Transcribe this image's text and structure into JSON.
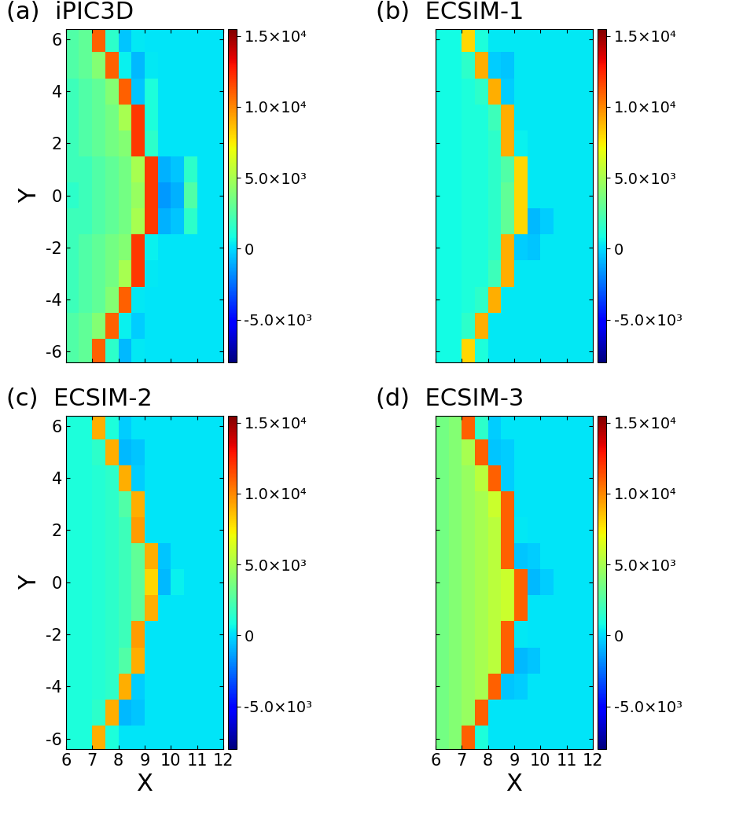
{
  "chart_data": [
    {
      "type": "heatmap",
      "title": "(a)  iPIC3D",
      "ylabel": "Y",
      "tick_labels": "y",
      "xlim": [
        6,
        12
      ],
      "ylim": [
        -6.4,
        6.4
      ],
      "xticks": [
        6,
        7,
        8,
        9,
        10,
        11,
        12
      ],
      "yticks": [
        -6,
        -4,
        -2,
        0,
        2,
        4,
        6
      ],
      "x": [
        6.25,
        6.75,
        7.25,
        7.75,
        8.25,
        8.75,
        9.25,
        9.75,
        10.25,
        10.75,
        11.25,
        11.75
      ],
      "y": [
        -6,
        -5,
        -4,
        -3,
        -2,
        -1,
        0,
        1,
        2,
        3,
        4,
        5,
        6
      ],
      "values": [
        [
          2500,
          3000,
          11000,
          1500,
          -800,
          300,
          200,
          200,
          200,
          200,
          200,
          200
        ],
        [
          2500,
          3000,
          4000,
          11000,
          500,
          -300,
          200,
          200,
          200,
          200,
          200,
          200
        ],
        [
          2000,
          2500,
          3000,
          4000,
          11000,
          300,
          200,
          200,
          200,
          200,
          200,
          200
        ],
        [
          2000,
          2500,
          3000,
          3500,
          5000,
          12000,
          300,
          200,
          200,
          200,
          200,
          200
        ],
        [
          2000,
          2500,
          3000,
          3500,
          4000,
          12000,
          500,
          200,
          200,
          200,
          200,
          200
        ],
        [
          2000,
          2000,
          2500,
          3000,
          3500,
          5000,
          12000,
          -1000,
          -500,
          1500,
          200,
          200
        ],
        [
          1500,
          2000,
          2500,
          3000,
          3500,
          4500,
          12000,
          -1500,
          -1000,
          2500,
          200,
          200
        ],
        [
          2000,
          2000,
          2500,
          3000,
          3500,
          5000,
          12000,
          -1000,
          -500,
          1500,
          200,
          200
        ],
        [
          2000,
          2500,
          3000,
          3500,
          4000,
          12000,
          1500,
          200,
          200,
          200,
          200,
          200
        ],
        [
          2000,
          2500,
          3000,
          3500,
          5000,
          12000,
          1000,
          200,
          200,
          200,
          200,
          200
        ],
        [
          2000,
          2500,
          3000,
          4000,
          11000,
          -500,
          1000,
          200,
          200,
          200,
          200,
          200
        ],
        [
          2500,
          3000,
          4000,
          11000,
          500,
          -800,
          300,
          200,
          200,
          200,
          200,
          200
        ],
        [
          2500,
          3000,
          11000,
          1500,
          -500,
          300,
          200,
          200,
          200,
          200,
          200,
          200
        ]
      ],
      "colorbar_range": [
        -8000,
        15500
      ],
      "colorbar_ticks": [
        {
          "value": -5000,
          "label": "-5.0×10³"
        },
        0,
        {
          "value": 5000,
          "label": "5.0×10³"
        },
        {
          "value": 10000,
          "label": "1.0×10⁴"
        },
        {
          "value": 15000,
          "label": "1.5×10⁴"
        }
      ]
    },
    {
      "type": "heatmap",
      "title": "(b)  ECSIM-1",
      "tick_labels": false,
      "xlim": [
        6,
        12
      ],
      "ylim": [
        -6.4,
        6.4
      ],
      "xticks": [
        6,
        7,
        8,
        9,
        10,
        11,
        12
      ],
      "yticks": [
        -6,
        -4,
        -2,
        0,
        2,
        4,
        6
      ],
      "x": [
        6.25,
        6.75,
        7.25,
        7.75,
        8.25,
        8.75,
        9.25,
        9.75,
        10.25,
        10.75,
        11.25,
        11.75
      ],
      "y": [
        -6,
        -5,
        -4,
        -3,
        -2,
        -1,
        0,
        1,
        2,
        3,
        4,
        5,
        6
      ],
      "values": [
        [
          800,
          800,
          8000,
          1000,
          300,
          300,
          300,
          300,
          300,
          300,
          300,
          300
        ],
        [
          800,
          800,
          1500,
          9000,
          300,
          300,
          300,
          300,
          300,
          300,
          300,
          300
        ],
        [
          800,
          800,
          1000,
          1500,
          9000,
          300,
          300,
          300,
          300,
          300,
          300,
          300
        ],
        [
          800,
          800,
          1000,
          1000,
          2000,
          9000,
          300,
          300,
          300,
          300,
          300,
          300
        ],
        [
          800,
          800,
          1000,
          1000,
          1500,
          9000,
          -300,
          -500,
          300,
          300,
          300,
          300
        ],
        [
          800,
          800,
          1000,
          1000,
          1500,
          3000,
          8000,
          -800,
          -300,
          300,
          300,
          300
        ],
        [
          800,
          800,
          1000,
          1000,
          1500,
          3000,
          8000,
          300,
          300,
          300,
          300,
          300
        ],
        [
          800,
          800,
          1000,
          1000,
          1500,
          2500,
          8000,
          300,
          300,
          300,
          300,
          300
        ],
        [
          800,
          800,
          1000,
          1000,
          1500,
          9000,
          500,
          300,
          300,
          300,
          300,
          300
        ],
        [
          800,
          800,
          1000,
          1000,
          2000,
          9000,
          300,
          300,
          300,
          300,
          300,
          300
        ],
        [
          800,
          800,
          1000,
          1500,
          9000,
          -300,
          300,
          300,
          300,
          300,
          300,
          300
        ],
        [
          800,
          800,
          1500,
          9000,
          -300,
          -500,
          300,
          300,
          300,
          300,
          300,
          300
        ],
        [
          800,
          800,
          8000,
          1000,
          300,
          300,
          300,
          300,
          300,
          300,
          300,
          300
        ]
      ],
      "colorbar_range": [
        -8000,
        15500
      ],
      "colorbar_ticks": [
        {
          "value": -5000,
          "label": "-5.0×10³"
        },
        0,
        {
          "value": 5000,
          "label": "5.0×10³"
        },
        {
          "value": 10000,
          "label": "1.0×10⁴"
        },
        {
          "value": 15000,
          "label": "1.5×10⁴"
        }
      ]
    },
    {
      "type": "heatmap",
      "title": "(c)  ECSIM-2",
      "xlabel": "X",
      "ylabel": "Y",
      "xlim": [
        6,
        12
      ],
      "ylim": [
        -6.4,
        6.4
      ],
      "xticks": [
        6,
        7,
        8,
        9,
        10,
        11,
        12
      ],
      "yticks": [
        -6,
        -4,
        -2,
        0,
        2,
        4,
        6
      ],
      "x": [
        6.25,
        6.75,
        7.25,
        7.75,
        8.25,
        8.75,
        9.25,
        9.75,
        10.25,
        10.75,
        11.25,
        11.75
      ],
      "y": [
        -6,
        -5,
        -4,
        -3,
        -2,
        -1,
        0,
        1,
        2,
        3,
        4,
        5,
        6
      ],
      "values": [
        [
          1000,
          1000,
          9000,
          1000,
          200,
          200,
          200,
          200,
          200,
          200,
          200,
          200
        ],
        [
          1000,
          1000,
          1500,
          9000,
          -800,
          -500,
          200,
          200,
          200,
          200,
          200,
          200
        ],
        [
          1000,
          1000,
          1200,
          1500,
          9000,
          -300,
          200,
          200,
          200,
          200,
          200,
          200
        ],
        [
          1000,
          1000,
          1200,
          1500,
          2500,
          9000,
          200,
          200,
          200,
          200,
          200,
          200
        ],
        [
          1000,
          1000,
          1200,
          1500,
          2000,
          9500,
          200,
          200,
          200,
          200,
          200,
          200
        ],
        [
          1000,
          1000,
          1200,
          1500,
          2000,
          3000,
          9000,
          200,
          200,
          200,
          200,
          200
        ],
        [
          1000,
          1000,
          1200,
          1500,
          2000,
          3000,
          8000,
          -800,
          500,
          200,
          200,
          200
        ],
        [
          1000,
          1000,
          1200,
          1500,
          2000,
          3000,
          9000,
          -500,
          200,
          200,
          200,
          200
        ],
        [
          1000,
          1000,
          1200,
          1500,
          2000,
          9500,
          200,
          200,
          200,
          200,
          200,
          200
        ],
        [
          1000,
          1000,
          1200,
          1500,
          2500,
          9000,
          200,
          200,
          200,
          200,
          200,
          200
        ],
        [
          1000,
          1000,
          1200,
          1500,
          9000,
          -300,
          200,
          200,
          200,
          200,
          200,
          200
        ],
        [
          1000,
          1000,
          1500,
          9000,
          -800,
          -500,
          200,
          200,
          200,
          200,
          200,
          200
        ],
        [
          1000,
          1000,
          9000,
          1000,
          -300,
          200,
          200,
          200,
          200,
          200,
          200,
          200
        ]
      ],
      "colorbar_range": [
        -8000,
        15500
      ],
      "colorbar_ticks": [
        {
          "value": -5000,
          "label": "-5.0×10³"
        },
        0,
        {
          "value": 5000,
          "label": "5.0×10³"
        },
        {
          "value": 10000,
          "label": "1.0×10⁴"
        },
        {
          "value": 15000,
          "label": "1.5×10⁴"
        }
      ]
    },
    {
      "type": "heatmap",
      "title": "(d)  ECSIM-3",
      "xlabel": "X",
      "tick_labels": "x",
      "xlim": [
        6,
        12
      ],
      "ylim": [
        -6.4,
        6.4
      ],
      "xticks": [
        6,
        7,
        8,
        9,
        10,
        11,
        12
      ],
      "yticks": [
        -6,
        -4,
        -2,
        0,
        2,
        4,
        6
      ],
      "x": [
        6.25,
        6.75,
        7.25,
        7.75,
        8.25,
        8.75,
        9.25,
        9.75,
        10.25,
        10.75,
        11.25,
        11.75
      ],
      "y": [
        -6,
        -5,
        -4,
        -3,
        -2,
        -1,
        0,
        1,
        2,
        3,
        4,
        5,
        6
      ],
      "values": [
        [
          3500,
          4000,
          11000,
          1000,
          200,
          200,
          200,
          200,
          200,
          200,
          200,
          200
        ],
        [
          3500,
          4000,
          4500,
          11000,
          200,
          200,
          200,
          200,
          200,
          200,
          200,
          200
        ],
        [
          3500,
          4000,
          4500,
          5000,
          11000,
          -500,
          -300,
          200,
          200,
          200,
          200,
          200
        ],
        [
          3500,
          4000,
          4500,
          5000,
          5500,
          11000,
          -800,
          -500,
          200,
          200,
          200,
          200
        ],
        [
          3500,
          4000,
          4500,
          5000,
          5500,
          11000,
          300,
          200,
          200,
          200,
          200,
          200
        ],
        [
          3500,
          4000,
          4500,
          5000,
          5500,
          6000,
          11000,
          200,
          200,
          200,
          200,
          200
        ],
        [
          3500,
          4000,
          4500,
          5000,
          5500,
          6000,
          11000,
          -800,
          -300,
          200,
          200,
          200
        ],
        [
          3500,
          4000,
          4500,
          5000,
          5500,
          11000,
          -500,
          -300,
          200,
          200,
          200,
          200
        ],
        [
          3500,
          4000,
          4500,
          5000,
          5500,
          11000,
          300,
          200,
          200,
          200,
          200,
          200
        ],
        [
          3500,
          4000,
          4500,
          5000,
          6000,
          11000,
          200,
          200,
          200,
          200,
          200,
          200
        ],
        [
          3500,
          4000,
          4500,
          5500,
          11000,
          -300,
          200,
          200,
          200,
          200,
          200,
          200
        ],
        [
          3500,
          4000,
          5000,
          11000,
          -500,
          -300,
          200,
          200,
          200,
          200,
          200,
          200
        ],
        [
          3500,
          4000,
          11000,
          1500,
          -300,
          200,
          200,
          200,
          200,
          200,
          200,
          200
        ]
      ],
      "colorbar_range": [
        -8000,
        15500
      ],
      "colorbar_ticks": [
        {
          "value": -5000,
          "label": "-5.0×10³"
        },
        0,
        {
          "value": 5000,
          "label": "5.0×10³"
        },
        {
          "value": 10000,
          "label": "1.0×10⁴"
        },
        {
          "value": 15000,
          "label": "1.5×10⁴"
        }
      ]
    }
  ]
}
